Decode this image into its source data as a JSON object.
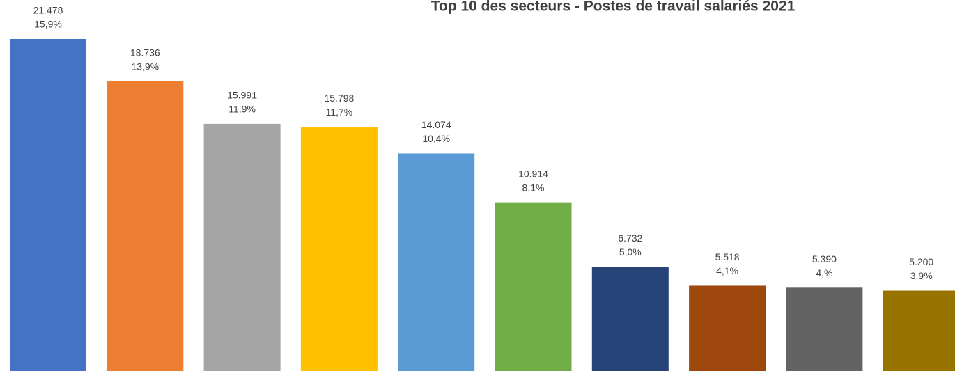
{
  "chart_data": {
    "type": "bar",
    "title": "Top 10 des secteurs - Postes de travail salariés 2021",
    "categories": [
      null,
      null,
      null,
      null,
      null,
      null,
      null,
      null,
      null,
      null
    ],
    "values": [
      21478,
      18736,
      15991,
      15798,
      14074,
      10914,
      6732,
      5518,
      5390,
      5200
    ],
    "value_labels": [
      "21.478",
      "18.736",
      "15.991",
      "15.798",
      "14.074",
      "10.914",
      "6.732",
      "5.518",
      "5.390",
      "5.200"
    ],
    "shares": [
      15.9,
      13.9,
      11.9,
      11.7,
      10.4,
      8.1,
      5.0,
      4.1,
      4,
      3.9
    ],
    "share_labels": [
      "15,9%",
      "13,9%",
      "11,9%",
      "11,7%",
      "10,4%",
      "8,1%",
      "5,0%",
      "4,1%",
      "4,%",
      "3,9%"
    ],
    "colors": [
      "#4472c4",
      "#ed7d31",
      "#a5a5a5",
      "#ffc000",
      "#5b9bd5",
      "#70ad47",
      "#264478",
      "#9e480e",
      "#636363",
      "#997300"
    ],
    "ylim": [
      0,
      24000
    ],
    "grid": false
  }
}
